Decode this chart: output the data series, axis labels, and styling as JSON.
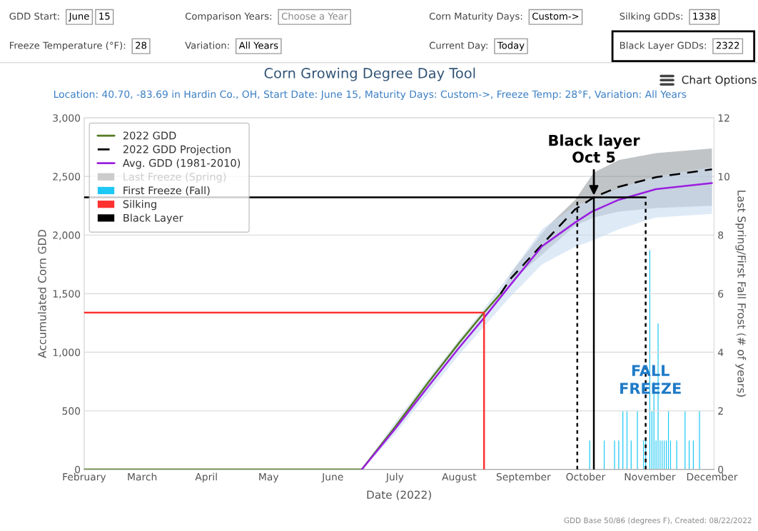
{
  "chart_data": {
    "type": "line",
    "title": "Corn Growing Degree Day Tool",
    "subtitle": "Location: 40.70, -83.69 in Hardin Co., OH, Start Date: June 15, Maturity Days: Custom->, Freeze Temp: 28°F, Variation: All Years",
    "xlabel": "Date (2022)",
    "ylabel": "Accumulated Corn GDD",
    "y2label": "Last Spring/First Fall Frost (# of years)",
    "xlim": [
      "2022-02-01",
      "2022-12-02"
    ],
    "xticks": [
      {
        "value": "2022-02-01",
        "label": "February"
      },
      {
        "value": "2022-03-01",
        "label": "March"
      },
      {
        "value": "2022-04-01",
        "label": "April"
      },
      {
        "value": "2022-05-01",
        "label": "May"
      },
      {
        "value": "2022-06-01",
        "label": "June"
      },
      {
        "value": "2022-07-01",
        "label": "July"
      },
      {
        "value": "2022-08-01",
        "label": "August"
      },
      {
        "value": "2022-09-01",
        "label": "September"
      },
      {
        "value": "2022-10-01",
        "label": "October"
      },
      {
        "value": "2022-11-01",
        "label": "November"
      },
      {
        "value": "2022-12-01",
        "label": "December"
      }
    ],
    "ylim": [
      0,
      3000
    ],
    "yticks": [
      0,
      {
        "value": 500,
        "label": "500"
      },
      {
        "value": 1000,
        "label": "1,000"
      },
      {
        "value": 1500,
        "label": "1,500"
      },
      {
        "value": 2000,
        "label": "2,000"
      },
      {
        "value": 2500,
        "label": "2,500"
      },
      {
        "value": 3000,
        "label": "3,000"
      }
    ],
    "y2lim": [
      0,
      12
    ],
    "y2ticks": [
      0,
      2,
      4,
      6,
      8,
      10,
      12
    ],
    "grid": "y",
    "legend": "top left",
    "series": [
      {
        "name": "2022 GDD",
        "color": "#557a22",
        "line_style": "solid",
        "x": [
          "2022-02-01",
          "2022-06-15",
          "2022-07-01",
          "2022-07-17",
          "2022-08-01",
          "2022-08-13",
          "2022-08-21"
        ],
        "values": [
          0,
          0,
          360,
          740,
          1080,
          1338,
          1500
        ]
      },
      {
        "name": "2022 GDD Projection",
        "color": "#000000",
        "line_style": "dashed",
        "x": [
          "2022-08-21",
          "2022-08-26",
          "2022-09-13",
          "2022-09-26",
          "2022-10-05",
          "2022-10-17",
          "2022-11-04",
          "2022-12-01"
        ],
        "values": [
          1500,
          1631,
          1976,
          2220,
          2322,
          2412,
          2494,
          2561
        ],
        "lower": [
          1500,
          1600,
          1880,
          2080,
          2150,
          2200,
          2230,
          2250
        ],
        "upper": [
          1500,
          1680,
          2080,
          2300,
          2534,
          2640,
          2700,
          2739
        ]
      },
      {
        "name": "Avg. GDD (1981-2010)",
        "color": "#9b1fe0",
        "line_style": "solid",
        "x": [
          "2022-06-15",
          "2022-07-01",
          "2022-07-17",
          "2022-08-01",
          "2022-08-12",
          "2022-08-26",
          "2022-09-10",
          "2022-09-26",
          "2022-10-04",
          "2022-10-17",
          "2022-11-04",
          "2022-12-01"
        ],
        "values": [
          0,
          344,
          706,
          1040,
          1272,
          1581,
          1905,
          2108,
          2199,
          2301,
          2392,
          2443
        ],
        "lower": [
          0,
          300,
          650,
          980,
          1200,
          1480,
          1750,
          1900,
          1950,
          2050,
          2150,
          2180
        ],
        "upper": [
          0,
          400,
          770,
          1110,
          1350,
          1680,
          2050,
          2250,
          2300,
          2400,
          2500,
          2580
        ]
      },
      {
        "name": "Last Freeze (Spring)",
        "type": "bar",
        "axis": "y2",
        "color": "#cccccc"
      },
      {
        "name": "First Freeze (Fall)",
        "type": "bar",
        "axis": "y2",
        "color": "#1ec8f5",
        "x": [
          "2022-10-03",
          "2022-10-10",
          "2022-10-15",
          "2022-10-17",
          "2022-10-19",
          "2022-10-21",
          "2022-10-23",
          "2022-10-26",
          "2022-10-29",
          "2022-10-30",
          "2022-11-01",
          "2022-11-02",
          "2022-11-03",
          "2022-11-04",
          "2022-11-05",
          "2022-11-06",
          "2022-11-07",
          "2022-11-08",
          "2022-11-09",
          "2022-11-10",
          "2022-11-11",
          "2022-11-14",
          "2022-11-18",
          "2022-11-20",
          "2022-11-22",
          "2022-11-25"
        ],
        "values": [
          1,
          1,
          1,
          1,
          2,
          2,
          1,
          2,
          1,
          1,
          7.5,
          2,
          3,
          1,
          5,
          1,
          1,
          1,
          1,
          2,
          1,
          1,
          2,
          1,
          1,
          2
        ]
      },
      {
        "name": "Silking",
        "color": "#ff3030",
        "x": [
          "2022-02-01",
          "2022-08-13",
          "2022-08-13"
        ],
        "values": [
          1338,
          1338,
          0
        ]
      },
      {
        "name": "Black Layer",
        "color": "#000000",
        "x": [
          "2022-02-01",
          "2022-10-05",
          "2022-10-05"
        ],
        "values": [
          2322,
          2322,
          0
        ]
      },
      {
        "color": "#000000",
        "x": [
          "2022-10-05",
          "2022-10-30"
        ],
        "values": [
          2322,
          2322
        ]
      },
      {
        "color": "#000000",
        "line_style": "dotted",
        "x": [
          "2022-09-27",
          "2022-09-27"
        ],
        "values": [
          0,
          2322
        ]
      },
      {
        "color": "#000000",
        "line_style": "dotted",
        "x": [
          "2022-10-30",
          "2022-10-30"
        ],
        "values": [
          0,
          2322
        ]
      }
    ],
    "annotations": [
      "GDD Start:",
      "June",
      "15",
      "Comparison Years:",
      "Choose a Year",
      "Corn Maturity Days:",
      "Custom->",
      "Silking GDDs:",
      "1338",
      "Freeze Temperature (°F):",
      "28",
      "Variation:",
      "All Years",
      "Current Day:",
      "Today",
      "Black Layer GDDs:",
      "2322",
      "Chart Options",
      "GDD Base 50/86 (degrees F), Created: 08/22/2022",
      {
        "text": "Black layer\nOct 5",
        "x": "2022-10-05",
        "y": 2322
      },
      "FALL\nFREEZE"
    ]
  }
}
